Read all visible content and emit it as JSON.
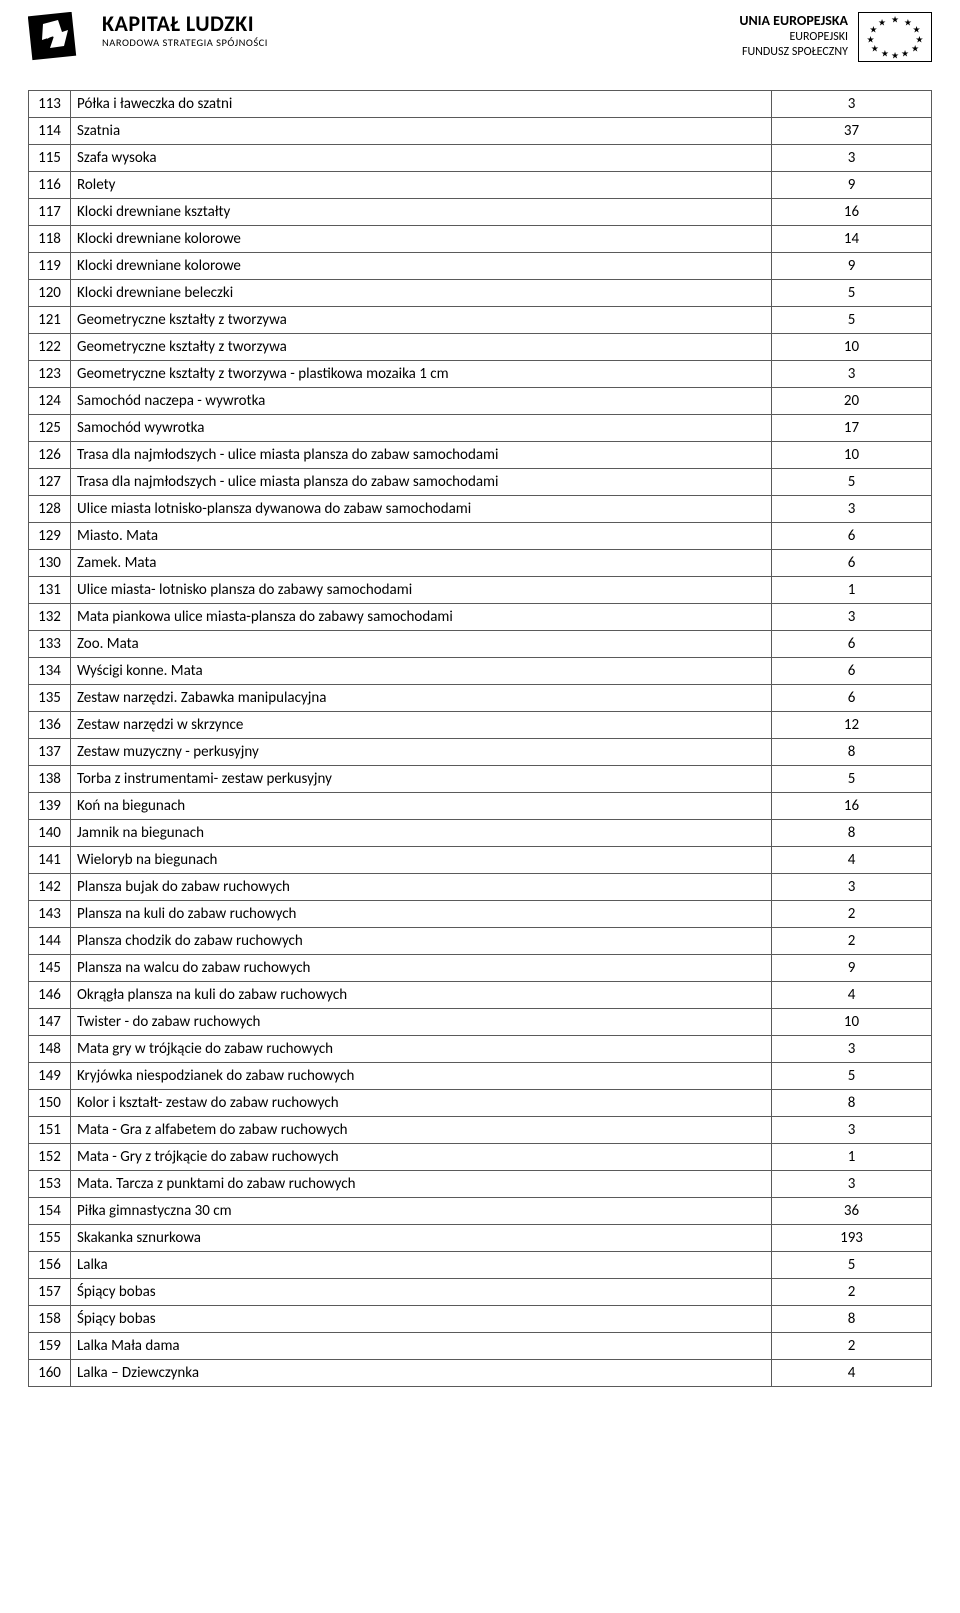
{
  "header": {
    "left": {
      "title": "KAPITAŁ LUDZKI",
      "subtitle": "NARODOWA STRATEGIA SPÓJNOŚCI"
    },
    "right": {
      "line1": "UNIA EUROPEJSKA",
      "line2": "EUROPEJSKI",
      "line3": "FUNDUSZ SPOŁECZNY"
    }
  },
  "table": {
    "rows": [
      {
        "n": "113",
        "d": "Półka i ławeczka do szatni",
        "q": "3"
      },
      {
        "n": "114",
        "d": "Szatnia",
        "q": "37"
      },
      {
        "n": "115",
        "d": "Szafa wysoka",
        "q": "3"
      },
      {
        "n": "116",
        "d": "Rolety",
        "q": "9"
      },
      {
        "n": "117",
        "d": "Klocki drewniane kształty",
        "q": "16"
      },
      {
        "n": "118",
        "d": "Klocki drewniane kolorowe",
        "q": "14"
      },
      {
        "n": "119",
        "d": "Klocki drewniane kolorowe",
        "q": "9"
      },
      {
        "n": "120",
        "d": "Klocki drewniane beleczki",
        "q": "5"
      },
      {
        "n": "121",
        "d": "Geometryczne kształty z tworzywa",
        "q": "5"
      },
      {
        "n": "122",
        "d": "Geometryczne kształty z tworzywa",
        "q": "10"
      },
      {
        "n": "123",
        "d": "Geometryczne kształty z tworzywa - plastikowa mozaika 1 cm",
        "q": "3"
      },
      {
        "n": "124",
        "d": "Samochód naczepa - wywrotka",
        "q": "20"
      },
      {
        "n": "125",
        "d": "Samochód wywrotka",
        "q": "17"
      },
      {
        "n": "126",
        "d": "Trasa dla najmłodszych - ulice  miasta plansza do zabaw samochodami",
        "q": "10"
      },
      {
        "n": "127",
        "d": "Trasa dla najmłodszych - ulice  miasta plansza do zabaw samochodami",
        "q": "5"
      },
      {
        "n": "128",
        "d": "Ulice miasta lotnisko-plansza dywanowa do zabaw samochodami",
        "q": "3"
      },
      {
        "n": "129",
        "d": "Miasto. Mata",
        "q": "6"
      },
      {
        "n": "130",
        "d": "Zamek. Mata",
        "q": "6"
      },
      {
        "n": "131",
        "d": " Ulice miasta- lotnisko plansza do zabawy samochodami",
        "q": "1"
      },
      {
        "n": "132",
        "d": "Mata piankowa ulice miasta-plansza do zabawy samochodami",
        "q": "3"
      },
      {
        "n": "133",
        "d": "Zoo. Mata",
        "q": "6"
      },
      {
        "n": "134",
        "d": "Wyścigi konne. Mata",
        "q": "6"
      },
      {
        "n": "135",
        "d": "Zestaw narzędzi. Zabawka manipulacyjna",
        "q": "6"
      },
      {
        "n": "136",
        "d": "Zestaw narzędzi w skrzynce",
        "q": "12"
      },
      {
        "n": "137",
        "d": "Zestaw muzyczny - perkusyjny",
        "q": "8"
      },
      {
        "n": "138",
        "d": "Torba z instrumentami- zestaw perkusyjny",
        "q": "5"
      },
      {
        "n": "139",
        "d": "Koń na biegunach",
        "q": "16"
      },
      {
        "n": "140",
        "d": "Jamnik na biegunach",
        "q": "8"
      },
      {
        "n": "141",
        "d": "Wieloryb  na biegunach",
        "q": "4"
      },
      {
        "n": "142",
        "d": "Plansza bujak do zabaw ruchowych",
        "q": "3"
      },
      {
        "n": "143",
        "d": "Plansza na kuli do zabaw ruchowych",
        "q": "2"
      },
      {
        "n": "144",
        "d": "Plansza chodzik do zabaw ruchowych",
        "q": "2"
      },
      {
        "n": "145",
        "d": "Plansza na walcu do zabaw ruchowych",
        "q": "9"
      },
      {
        "n": "146",
        "d": "Okrągła plansza na kuli do zabaw ruchowych",
        "q": "4"
      },
      {
        "n": "147",
        "d": "Twister - do zabaw ruchowych",
        "q": "10"
      },
      {
        "n": "148",
        "d": "Mata gry w trójkącie do zabaw ruchowych",
        "q": "3"
      },
      {
        "n": "149",
        "d": "Kryjówka niespodzianek do zabaw ruchowych",
        "q": "5"
      },
      {
        "n": "150",
        "d": "Kolor i kształt- zestaw do zabaw ruchowych",
        "q": "8"
      },
      {
        "n": "151",
        "d": "Mata - Gra z alfabetem do zabaw ruchowych",
        "q": "3"
      },
      {
        "n": "152",
        "d": "Mata - Gry z trójkącie  do zabaw ruchowych",
        "q": "1"
      },
      {
        "n": "153",
        "d": "Mata. Tarcza z punktami do zabaw ruchowych",
        "q": "3"
      },
      {
        "n": "154",
        "d": "Piłka gimnastyczna 30 cm",
        "q": "36"
      },
      {
        "n": "155",
        "d": "Skakanka sznurkowa",
        "q": "193"
      },
      {
        "n": "156",
        "d": "Lalka",
        "q": "5"
      },
      {
        "n": "157",
        "d": "Śpiący bobas",
        "q": "2"
      },
      {
        "n": "158",
        "d": "Śpiący bobas",
        "q": "8"
      },
      {
        "n": "159",
        "d": "Lalka Mała dama",
        "q": "2"
      },
      {
        "n": "160",
        "d": "Lalka – Dziewczynka",
        "q": "4"
      }
    ]
  }
}
